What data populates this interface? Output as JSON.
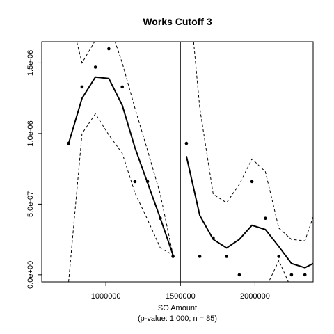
{
  "chart_data": {
    "type": "line",
    "title": "Works Cutoff 3",
    "xlabel": "SO Amount",
    "caption": "(p-value: 1.000; n = 85)",
    "ylabel": "",
    "xlim": [
      570000,
      2390000
    ],
    "ylim": [
      -5e-08,
      1.65e-06
    ],
    "cutoff": 1500000,
    "x_ticks": [
      {
        "value": 1000000,
        "label": "1000000"
      },
      {
        "value": 1500000,
        "label": "1500000"
      },
      {
        "value": 2000000,
        "label": "2000000"
      }
    ],
    "y_ticks": [
      {
        "value": 0,
        "label": "0.0e+00"
      },
      {
        "value": 5e-07,
        "label": "5.0e-07"
      },
      {
        "value": 1e-06,
        "label": "1.0e-06"
      },
      {
        "value": 1.5e-06,
        "label": "1.5e-06"
      }
    ],
    "points": [
      {
        "x": 750000,
        "y": 9.3e-07
      },
      {
        "x": 840000,
        "y": 1.33e-06
      },
      {
        "x": 930000,
        "y": 1.47e-06
      },
      {
        "x": 1020000,
        "y": 1.6e-06
      },
      {
        "x": 1110000,
        "y": 1.33e-06
      },
      {
        "x": 1195000,
        "y": 6.6e-07
      },
      {
        "x": 1280000,
        "y": 6.6e-07
      },
      {
        "x": 1365000,
        "y": 4e-07
      },
      {
        "x": 1450000,
        "y": 1.3e-07
      },
      {
        "x": 1540000,
        "y": 9.3e-07
      },
      {
        "x": 1630000,
        "y": 1.3e-07
      },
      {
        "x": 1720000,
        "y": 2.6e-07
      },
      {
        "x": 1810000,
        "y": 1.3e-07
      },
      {
        "x": 1895000,
        "y": 0
      },
      {
        "x": 1980000,
        "y": 6.6e-07
      },
      {
        "x": 2070000,
        "y": 4e-07
      },
      {
        "x": 2160000,
        "y": 1.3e-07
      },
      {
        "x": 2245000,
        "y": 0
      },
      {
        "x": 2335000,
        "y": 0
      }
    ],
    "series": [
      {
        "role": "fit-left",
        "x": [
          750000,
          840000,
          930000,
          1020000,
          1110000,
          1195000,
          1280000,
          1365000,
          1450000
        ],
        "y": [
          9.3e-07,
          1.25e-06,
          1.4e-06,
          1.39e-06,
          1.2e-06,
          9e-07,
          6.5e-07,
          4e-07,
          1.4e-07
        ]
      },
      {
        "role": "fit-right",
        "x": [
          1540000,
          1630000,
          1720000,
          1810000,
          1895000,
          1980000,
          2070000,
          2160000,
          2245000,
          2335000,
          2390000
        ],
        "y": [
          8.4e-07,
          4.2e-07,
          2.5e-07,
          1.9e-07,
          2.5e-07,
          3.5e-07,
          3.2e-07,
          2e-07,
          8e-08,
          5e-08,
          8e-08
        ]
      },
      {
        "role": "ci-upper-left",
        "x": [
          750000,
          840000,
          930000,
          1020000,
          1110000,
          1195000,
          1280000,
          1365000,
          1450000
        ],
        "y": [
          1.88e-06,
          1.5e-06,
          1.66e-06,
          1.78e-06,
          1.5e-06,
          1.18e-06,
          8.8e-07,
          5.7e-07,
          1.4e-07
        ]
      },
      {
        "role": "ci-lower-left",
        "x": [
          750000,
          840000,
          930000,
          1020000,
          1110000,
          1195000,
          1280000,
          1365000,
          1450000
        ],
        "y": [
          -5e-08,
          1e-06,
          1.14e-06,
          9.9e-07,
          8.6e-07,
          5.8e-07,
          3.9e-07,
          1.9e-07,
          1.4e-07
        ]
      },
      {
        "role": "ci-upper-right",
        "x": [
          1540000,
          1630000,
          1720000,
          1810000,
          1895000,
          1980000,
          2070000,
          2160000,
          2245000,
          2335000,
          2390000
        ],
        "y": [
          2.2e-06,
          1.18e-06,
          5.7e-07,
          5.1e-07,
          6.4e-07,
          8.2e-07,
          7.3e-07,
          3.3e-07,
          2.5e-07,
          2.4e-07,
          4.1e-07
        ]
      },
      {
        "role": "ci-lower-right",
        "x": [
          1540000,
          1630000,
          1720000,
          1810000,
          1895000,
          1980000,
          2070000,
          2160000,
          2245000,
          2335000,
          2390000
        ],
        "y": [
          -4e-07,
          -3e-07,
          -1e-07,
          -1e-07,
          -1e-07,
          -1e-07,
          -1e-07,
          1e-07,
          -1e-07,
          -1.5e-07,
          -2.5e-07
        ]
      }
    ]
  }
}
